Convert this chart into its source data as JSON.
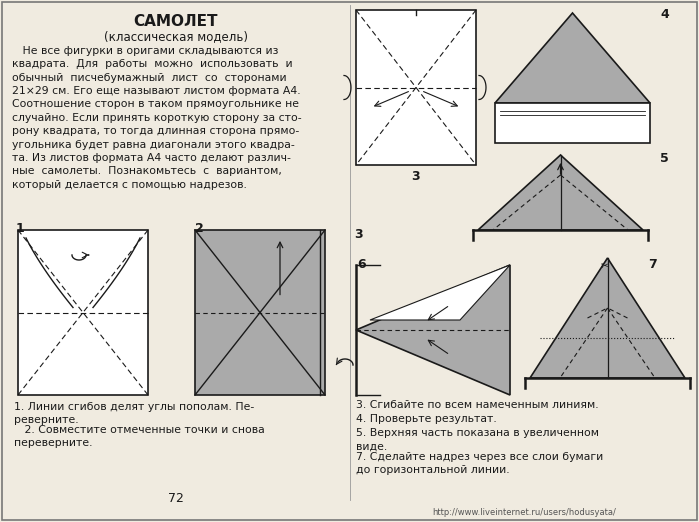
{
  "title": "САМОЛЕТ",
  "subtitle": "(классическая модель)",
  "body_text": "   Не все фигурки в оригами складываются из\nквадрата.  Для  работы  можно  использовать  и\nобычный  писчебумажный  лист  со  сторонами\n21×29 см. Его еще называют листом формата А4.\nСоотношение сторон в таком прямоугольнике не\nслучайно. Если принять короткую сторону за сто-\nрону квадрата, то тогда длинная сторона прямо-\nугольника будет равна диагонали этого квадра-\nта. Из листов формата А4 часто делают различ-\nные  самолеты.  Познакомьтесь  с  вариантом,\nкоторый делается с помощью надрезов.",
  "caption1": "1. Линии сгибов делят углы пополам. Пе-\nреверните.",
  "caption2": "   2. Совместите отмеченные точки и снова\nпереверните.",
  "caption3": "3. Сгибайте по всем намеченным линиям.",
  "caption4": "4. Проверьте результат.",
  "caption5": "5. Верхняя часть показана в увеличенном\nвиде.",
  "caption7": "7. Сделайте надрез через все слои бумаги\nдо горизонтальной линии.",
  "page_number": "72",
  "watermark": "http://www.liveinternet.ru/users/hodusyata/",
  "bg_color": "#f0ebe0",
  "text_color": "#1a1a1a",
  "line_color": "#1a1a1a",
  "gray_fill": "#aaaaaa"
}
